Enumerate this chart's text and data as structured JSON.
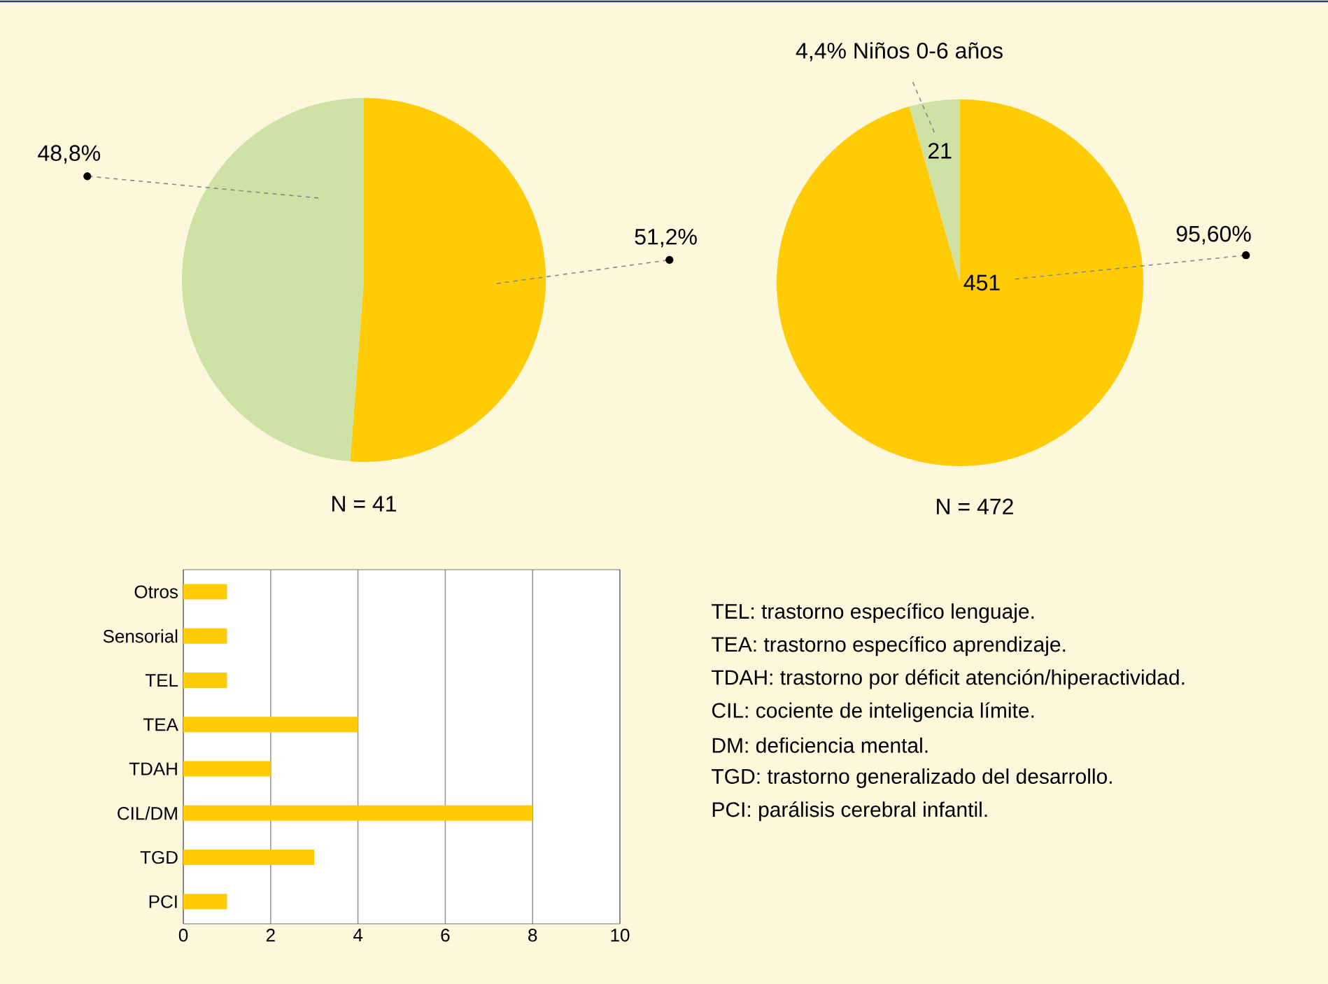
{
  "chart_data": [
    {
      "type": "pie",
      "categories": [
        null,
        null
      ],
      "values": [
        51.2,
        48.8
      ],
      "colors": [
        "#ffcb05",
        "#cfe2a6"
      ],
      "value_labels": [
        "51,2%",
        "48,8%"
      ],
      "xlabel": "N = 41"
    },
    {
      "type": "pie",
      "categories": [
        null,
        null
      ],
      "values": [
        451,
        21
      ],
      "colors": [
        "#ffcb05",
        "#cfe2a6"
      ],
      "value_labels": [
        "451",
        "21"
      ],
      "annotations": [
        "95,60%",
        "4,4% Niños 0-6 años"
      ],
      "xlabel": "N = 472"
    },
    {
      "type": "bar",
      "orientation": "horizontal",
      "categories": [
        "Otros",
        "Sensorial",
        "TEL",
        "TEA",
        "TDAH",
        "CIL/DM",
        "TGD",
        "PCI"
      ],
      "values": [
        1,
        1,
        1,
        4,
        2,
        8,
        3,
        1
      ],
      "color": "#ffcb05",
      "xlim": [
        0,
        10
      ],
      "xticks": [
        0,
        2,
        4,
        6,
        8,
        10
      ],
      "grid": "x"
    },
    {
      "type": "other",
      "annotations": [
        "TEL: trastorno específico lenguaje.",
        "TEA: trastorno específico aprendizaje.",
        "TDAH: trastorno por déficit atención/hiperactividad.",
        "CIL: cociente de inteligencia límite.",
        "DM: deficiencia mental.",
        "TGD: trastorno generalizado del desarrollo.",
        "PCI: parálisis cerebral infantil."
      ]
    }
  ]
}
